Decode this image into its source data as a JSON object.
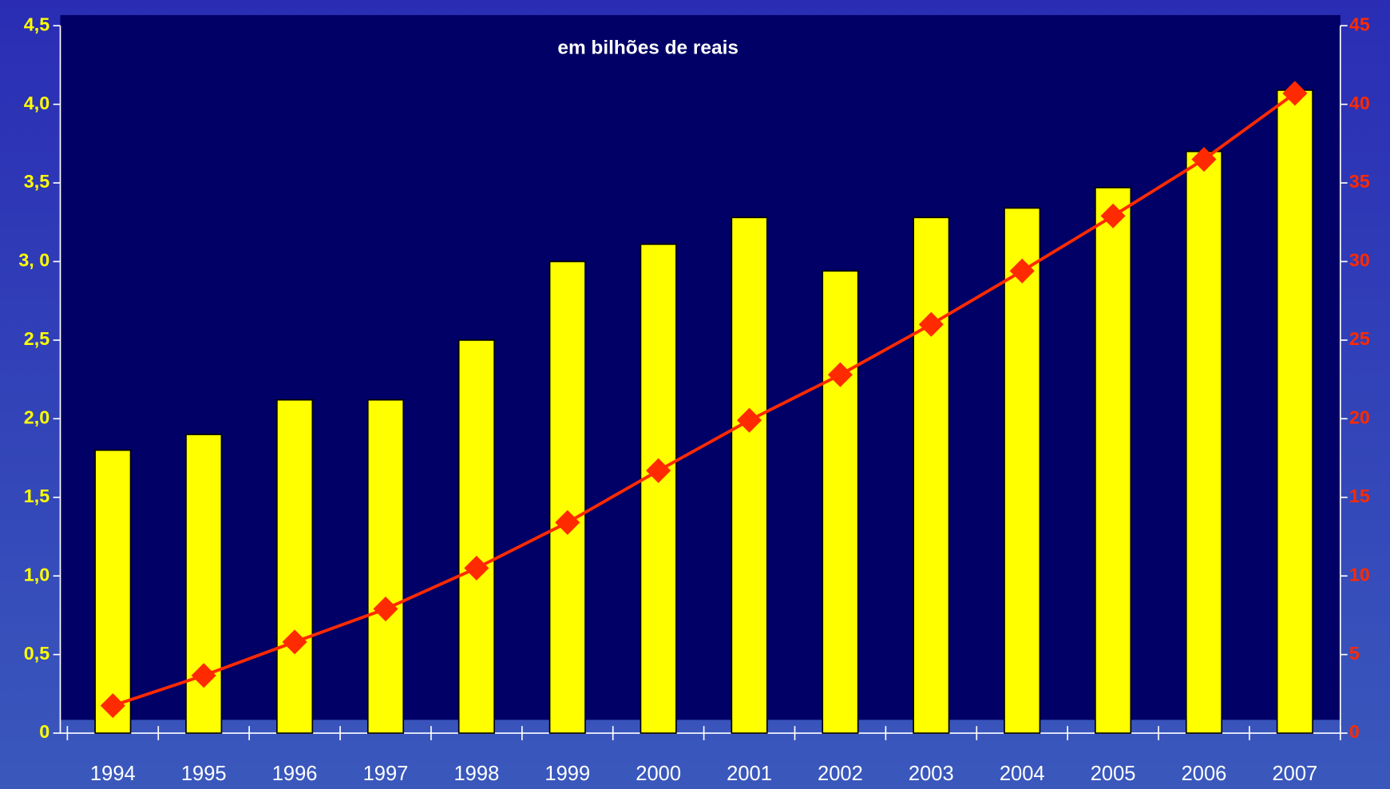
{
  "chart_data": {
    "type": "bar",
    "title": "em bilhões de reais",
    "categories": [
      "1994",
      "1995",
      "1996",
      "1997",
      "1998",
      "1999",
      "2000",
      "2001",
      "2002",
      "2003",
      "2004",
      "2005",
      "2006",
      "2007"
    ],
    "series": [
      {
        "type": "bar",
        "color": "#ffff00",
        "axis": "y",
        "values": [
          1.8,
          1.9,
          2.12,
          2.12,
          2.5,
          3.0,
          3.11,
          3.28,
          2.94,
          3.28,
          3.34,
          3.47,
          3.7,
          4.09
        ]
      },
      {
        "type": "line",
        "color": "#ff2a00",
        "axis": "y2",
        "values": [
          1.75,
          3.67,
          5.8,
          7.9,
          10.5,
          13.4,
          16.7,
          19.9,
          22.8,
          26.0,
          29.4,
          32.9,
          36.5,
          40.7
        ]
      }
    ],
    "ylim": [
      0,
      4.5
    ],
    "yticks": [
      0,
      {
        "value": 0.5,
        "label": "0,5"
      },
      {
        "value": 1,
        "label": "1,0"
      },
      {
        "value": 1.5,
        "label": "1,5"
      },
      {
        "value": 2,
        "label": "2,0"
      },
      {
        "value": 2.5,
        "label": "2,5"
      },
      {
        "value": 3,
        "label": "3, 0"
      },
      {
        "value": 3.5,
        "label": "3,5"
      },
      {
        "value": 4,
        "label": "4,0"
      },
      {
        "value": 4.5,
        "label": "4,5"
      }
    ],
    "y2lim": [
      0,
      45
    ],
    "y2ticks": [
      0,
      5,
      10,
      15,
      20,
      25,
      30,
      35,
      40,
      45
    ]
  }
}
